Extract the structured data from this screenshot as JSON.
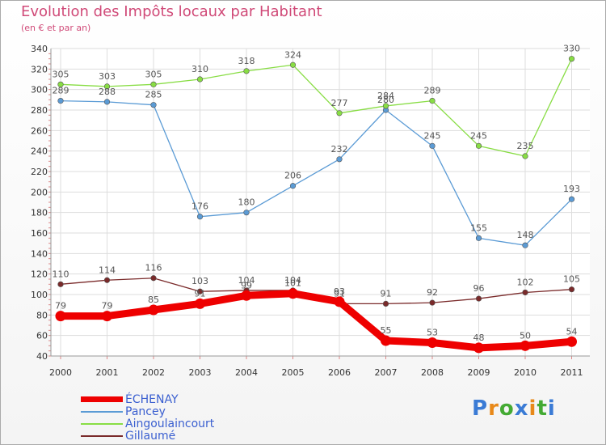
{
  "chart_data": {
    "type": "line",
    "title": "Evolution des Impôts locaux par Habitant",
    "subtitle": "(en € et par an)",
    "xlabel": "",
    "ylabel": "",
    "ylim": [
      40,
      340
    ],
    "yticks": [
      "40",
      "60",
      "80",
      "100",
      "120",
      "140",
      "160",
      "180",
      "200",
      "220",
      "240",
      "260",
      "280",
      "300",
      "320",
      "340"
    ],
    "categories": [
      "2000",
      "2001",
      "2002",
      "2003",
      "2004",
      "2005",
      "2006",
      "2007",
      "2008",
      "2009",
      "2010",
      "2011"
    ],
    "grid": true,
    "legend_position": "bottom-left",
    "series": [
      {
        "name": "ÉCHENAY",
        "color": "#ee0000",
        "values": [
          79,
          79,
          85,
          91,
          99,
          101,
          93,
          55,
          53,
          48,
          50,
          54
        ],
        "labels": [
          "79",
          "79",
          "85",
          "91",
          "99",
          "101",
          "93",
          "55",
          "53",
          "48",
          "50",
          "54"
        ],
        "bold": true
      },
      {
        "name": "Pancey",
        "color": "#5b9bd5",
        "values": [
          289,
          288,
          285,
          176,
          180,
          206,
          232,
          280,
          245,
          155,
          148,
          193
        ],
        "labels": [
          "289",
          "288",
          "285",
          "176",
          "180",
          "206",
          "232",
          "280",
          "245",
          "155",
          "148",
          "193"
        ]
      },
      {
        "name": "Aingoulaincourt",
        "color": "#88dd44",
        "values": [
          305,
          303,
          305,
          310,
          318,
          324,
          277,
          284,
          289,
          245,
          235,
          330
        ],
        "labels": [
          "305",
          "303",
          "305",
          "310",
          "318",
          "324",
          "277",
          "284",
          "289",
          "245",
          "235",
          "330"
        ]
      },
      {
        "name": "Gillaumé",
        "color": "#7a2a2a",
        "values": [
          110,
          114,
          116,
          103,
          104,
          104,
          91,
          91,
          92,
          96,
          102,
          105
        ],
        "labels": [
          "110",
          "114",
          "116",
          "103",
          "104",
          "104",
          "91",
          "91",
          "92",
          "96",
          "102",
          "105"
        ]
      }
    ]
  },
  "logo": {
    "text": "Proxiti",
    "letters": [
      "P",
      "r",
      "o",
      "x",
      "i",
      "t",
      "i"
    ],
    "colors": [
      "#3a7bd5",
      "#e8891a",
      "#44aa33",
      "#3a7bd5",
      "#e8891a",
      "#44aa33",
      "#3a7bd5"
    ]
  }
}
